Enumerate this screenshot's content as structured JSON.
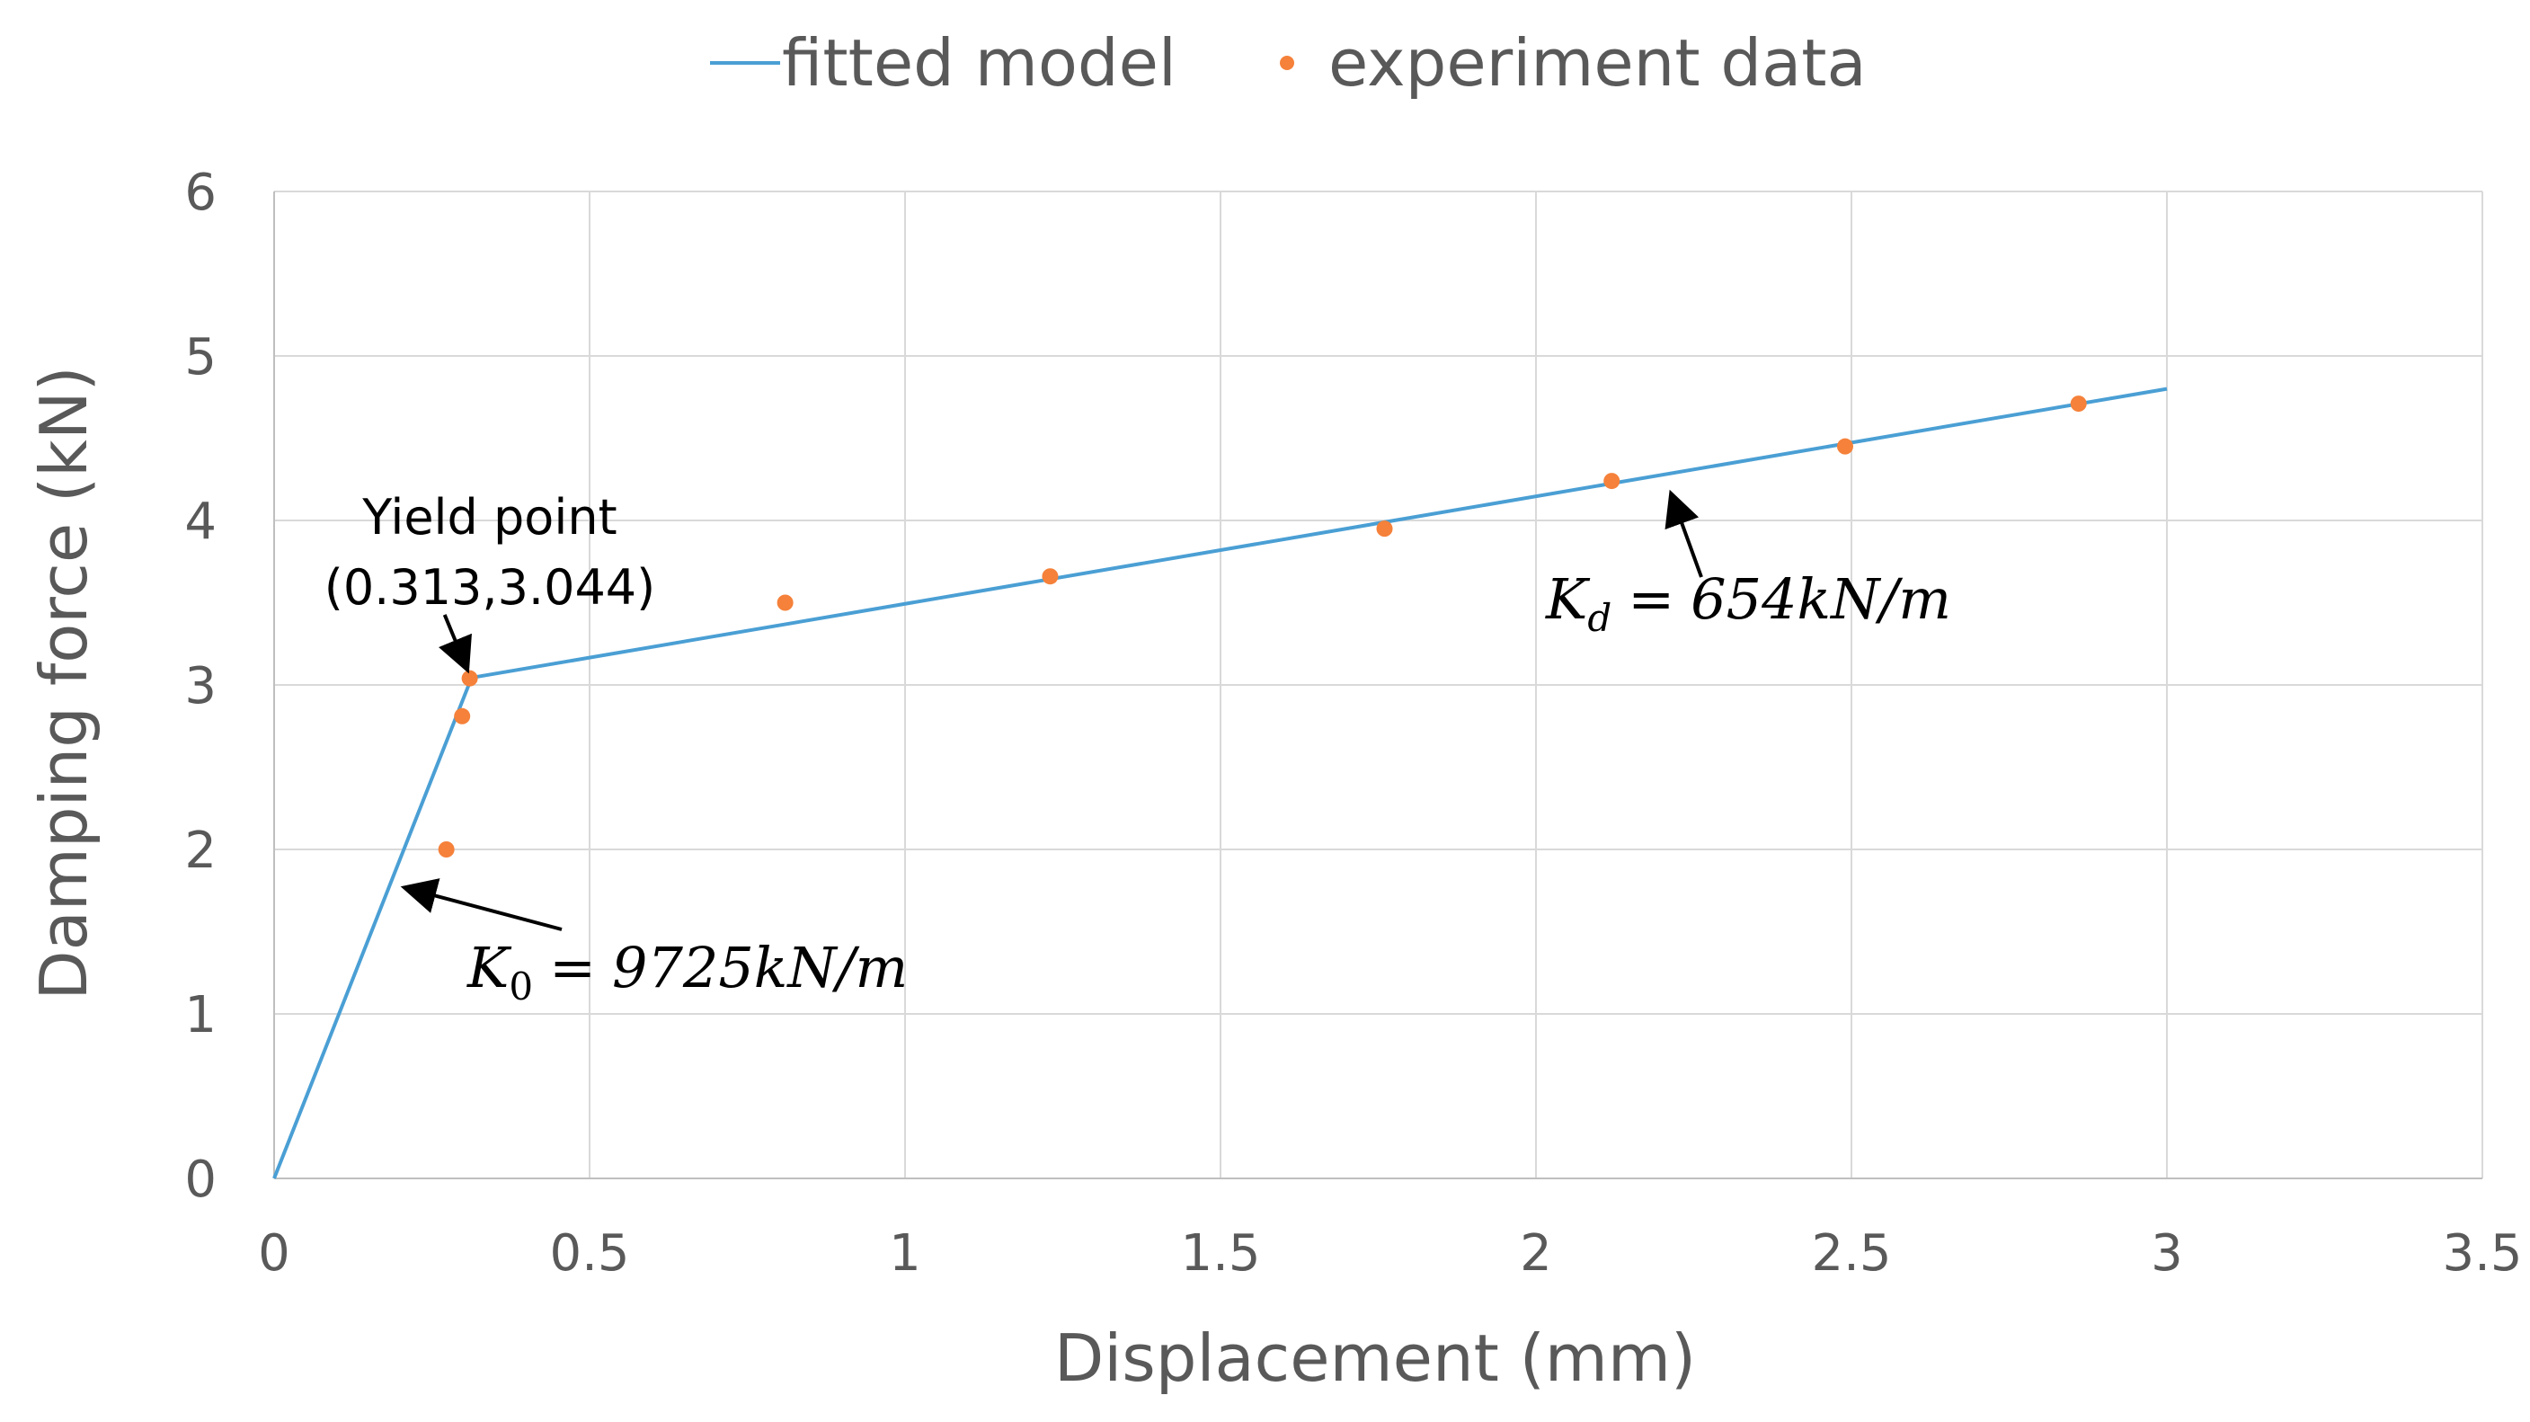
{
  "chart_data": {
    "type": "scatter",
    "title": "",
    "xlabel": "Displacement (mm)",
    "ylabel": "Damping force (kN)",
    "xlim": [
      0,
      3.5
    ],
    "ylim": [
      0,
      6
    ],
    "xticks": [
      0,
      0.5,
      1,
      1.5,
      2,
      2.5,
      3,
      3.5
    ],
    "xtick_labels": [
      "0",
      "0.5",
      "1",
      "1.5",
      "2",
      "2.5",
      "3",
      "3.5"
    ],
    "yticks": [
      0,
      1,
      2,
      3,
      4,
      5,
      6
    ],
    "ytick_labels": [
      "0",
      "1",
      "2",
      "3",
      "4",
      "5",
      "6"
    ],
    "grid": true,
    "legend_position": "top-center",
    "series": [
      {
        "name": "fitted model",
        "kind": "line",
        "color": "#4a9fd4",
        "x": [
          0,
          0.313,
          3.0
        ],
        "y": [
          0,
          3.044,
          4.8
        ]
      },
      {
        "name": "experiment data",
        "kind": "scatter",
        "color": "#f5813a",
        "x": [
          0.273,
          0.298,
          0.31,
          0.81,
          1.23,
          1.76,
          2.12,
          2.49,
          2.86
        ],
        "y": [
          2.0,
          2.81,
          3.04,
          3.5,
          3.66,
          3.95,
          4.24,
          4.45,
          4.71
        ]
      }
    ],
    "annotations": {
      "yield": {
        "line1": "Yield point",
        "line2": "(0.313,3.044)",
        "x": 0.313,
        "y": 3.044
      },
      "k0": {
        "symbol": "K",
        "subscript": "0",
        "equals": "=",
        "value": "9725kN/m",
        "x": 0.2,
        "y": 1.78
      },
      "kd": {
        "symbol": "K",
        "subscript": "d",
        "equals": "=",
        "value": "654kN/m",
        "x": 2.21,
        "y": 4.19
      }
    }
  }
}
